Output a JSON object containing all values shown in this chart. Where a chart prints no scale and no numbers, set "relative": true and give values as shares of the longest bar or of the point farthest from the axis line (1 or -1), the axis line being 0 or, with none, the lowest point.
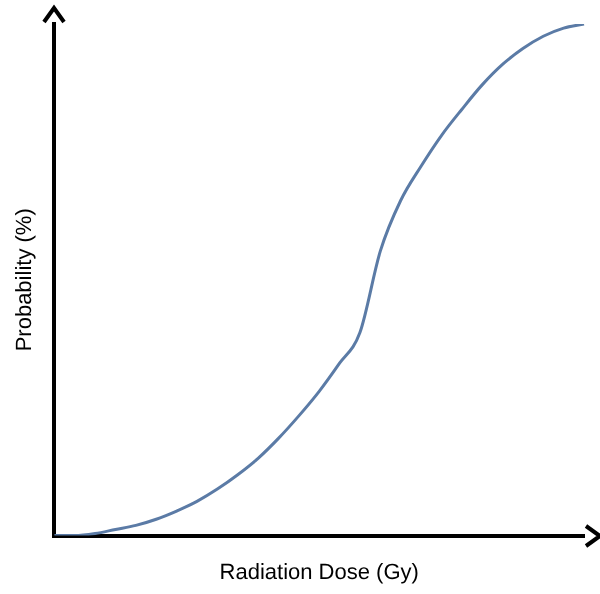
{
  "chart_data": {
    "type": "line",
    "xlabel": "Radiation Dose (Gy)",
    "ylabel": "Probability (%)",
    "relative": true,
    "grid": false,
    "legend": false,
    "marker": "none",
    "line_style": "solid",
    "categories": [
      null,
      null,
      null,
      null,
      null,
      null,
      null,
      null,
      null,
      null,
      null,
      null,
      null,
      null,
      null,
      null,
      null,
      null,
      null,
      null,
      null,
      null,
      null,
      null,
      null,
      null,
      null
    ],
    "series": [
      {
        "color": "#5b7ba6",
        "values": [
          0,
          0,
          0.004,
          0.012,
          0.02,
          0.032,
          0.048,
          0.067,
          0.091,
          0.119,
          0.151,
          0.19,
          0.234,
          0.282,
          0.337,
          0.397,
          0.556,
          0.655,
          0.722,
          0.782,
          0.833,
          0.881,
          0.921,
          0.952,
          0.976,
          0.992,
          1
        ]
      }
    ]
  }
}
